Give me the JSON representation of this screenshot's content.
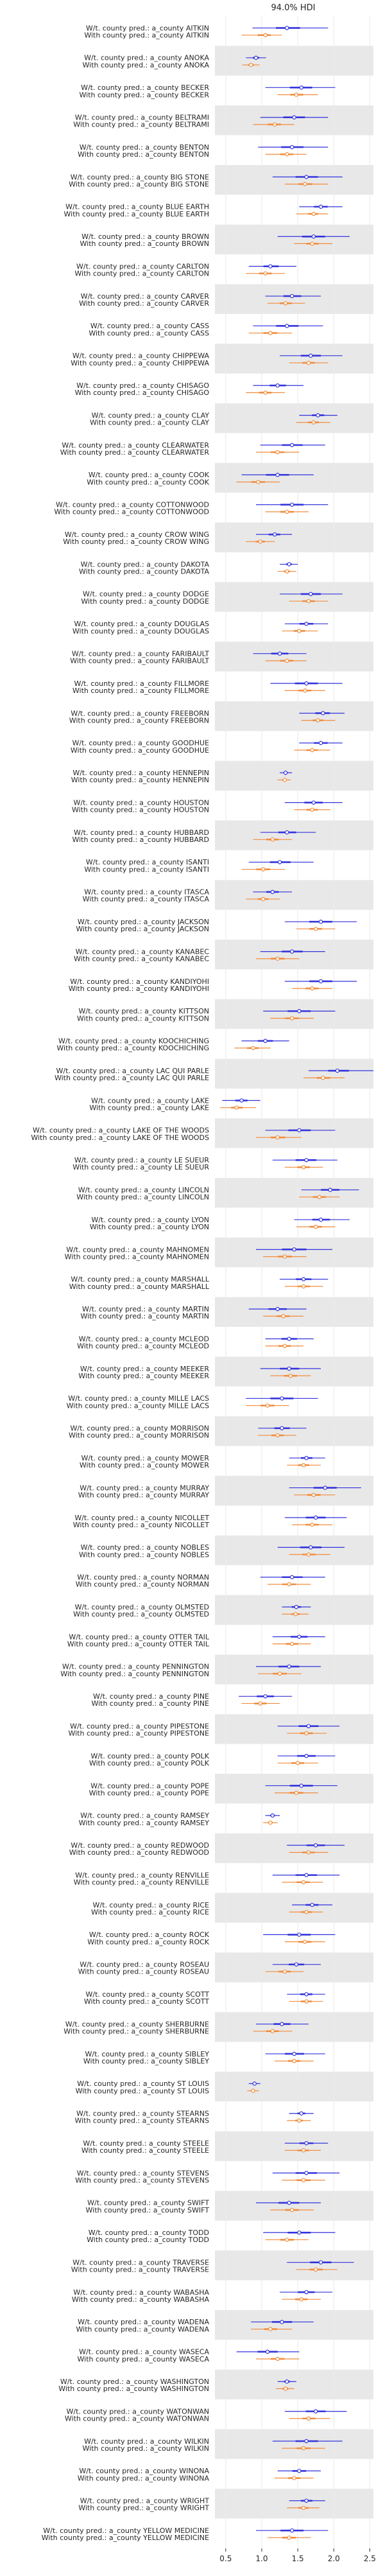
{
  "chart_data": {
    "type": "forest",
    "title": "94.0% HDI",
    "xlim": [
      0.35,
      2.55
    ],
    "xticks": [
      "0.5",
      "1.0",
      "1.5",
      "2.0",
      "2.5"
    ],
    "xtick_values": [
      0.5,
      1.0,
      1.5,
      2.0,
      2.5
    ],
    "grid": true,
    "band_colors": [
      "#ffffff",
      "#e8e8e8"
    ],
    "colors": {
      "without": "#3333dd",
      "with": "#f28c3c"
    },
    "label_templates": {
      "without": "W/t. county pred.: a_county {c}",
      "with": "With county pred.: a_county {c}"
    },
    "counties": [
      {
        "name": "AITKIN",
        "wo": [
          0.87,
          1.35,
          1.92
        ],
        "w": [
          0.72,
          1.05,
          1.28
        ]
      },
      {
        "name": "ANOKA",
        "wo": [
          0.78,
          0.92,
          1.06
        ],
        "w": [
          0.73,
          0.85,
          0.97
        ]
      },
      {
        "name": "BECKER",
        "wo": [
          1.05,
          1.55,
          2.02
        ],
        "w": [
          1.22,
          1.48,
          1.78
        ]
      },
      {
        "name": "BELTRAMI",
        "wo": [
          0.98,
          1.45,
          1.92
        ],
        "w": [
          0.88,
          1.18,
          1.45
        ]
      },
      {
        "name": "BENTON",
        "wo": [
          0.95,
          1.42,
          1.92
        ],
        "w": [
          1.05,
          1.35,
          1.62
        ]
      },
      {
        "name": "BIG STONE",
        "wo": [
          1.15,
          1.62,
          2.12
        ],
        "w": [
          1.32,
          1.6,
          1.92
        ]
      },
      {
        "name": "BLUE EARTH",
        "wo": [
          1.52,
          1.82,
          2.12
        ],
        "w": [
          1.48,
          1.72,
          1.92
        ]
      },
      {
        "name": "BROWN",
        "wo": [
          1.22,
          1.72,
          2.22
        ],
        "w": [
          1.45,
          1.7,
          1.98
        ]
      },
      {
        "name": "CARLTON",
        "wo": [
          0.82,
          1.12,
          1.48
        ],
        "w": [
          0.78,
          1.05,
          1.32
        ]
      },
      {
        "name": "CARVER",
        "wo": [
          1.05,
          1.42,
          1.82
        ],
        "w": [
          1.08,
          1.33,
          1.6
        ]
      },
      {
        "name": "CASS",
        "wo": [
          0.88,
          1.35,
          1.85
        ],
        "w": [
          0.82,
          1.12,
          1.42
        ]
      },
      {
        "name": "CHIPPEWA",
        "wo": [
          1.25,
          1.68,
          2.12
        ],
        "w": [
          1.38,
          1.65,
          1.92
        ]
      },
      {
        "name": "CHISAGO",
        "wo": [
          0.88,
          1.22,
          1.58
        ],
        "w": [
          0.78,
          1.05,
          1.32
        ]
      },
      {
        "name": "CLAY",
        "wo": [
          1.52,
          1.78,
          2.05
        ],
        "w": [
          1.48,
          1.72,
          1.95
        ]
      },
      {
        "name": "CLEARWATER",
        "wo": [
          0.98,
          1.42,
          1.88
        ],
        "w": [
          0.92,
          1.22,
          1.52
        ]
      },
      {
        "name": "COOK",
        "wo": [
          0.72,
          1.22,
          1.72
        ],
        "w": [
          0.65,
          0.95,
          1.25
        ]
      },
      {
        "name": "COTTONWOOD",
        "wo": [
          0.92,
          1.42,
          1.92
        ],
        "w": [
          1.05,
          1.35,
          1.65
        ]
      },
      {
        "name": "CROW WING",
        "wo": [
          0.92,
          1.18,
          1.42
        ],
        "w": [
          0.78,
          0.98,
          1.18
        ]
      },
      {
        "name": "DAKOTA",
        "wo": [
          1.25,
          1.38,
          1.5
        ],
        "w": [
          1.22,
          1.35,
          1.48
        ]
      },
      {
        "name": "DODGE",
        "wo": [
          1.25,
          1.68,
          2.12
        ],
        "w": [
          1.38,
          1.65,
          1.92
        ]
      },
      {
        "name": "DOUGLAS",
        "wo": [
          1.32,
          1.62,
          1.92
        ],
        "w": [
          1.28,
          1.52,
          1.78
        ]
      },
      {
        "name": "FARIBAULT",
        "wo": [
          0.88,
          1.25,
          1.62
        ],
        "w": [
          1.05,
          1.35,
          1.62
        ]
      },
      {
        "name": "FILLMORE",
        "wo": [
          1.12,
          1.62,
          2.12
        ],
        "w": [
          1.32,
          1.6,
          1.88
        ]
      },
      {
        "name": "FREEBORN",
        "wo": [
          1.52,
          1.85,
          2.15
        ],
        "w": [
          1.55,
          1.78,
          2.02
        ]
      },
      {
        "name": "GOODHUE",
        "wo": [
          1.52,
          1.82,
          2.12
        ],
        "w": [
          1.45,
          1.7,
          1.95
        ]
      },
      {
        "name": "HENNEPIN",
        "wo": [
          1.25,
          1.33,
          1.42
        ],
        "w": [
          1.22,
          1.32,
          1.4
        ]
      },
      {
        "name": "HOUSTON",
        "wo": [
          1.32,
          1.72,
          2.12
        ],
        "w": [
          1.45,
          1.7,
          1.95
        ]
      },
      {
        "name": "HUBBARD",
        "wo": [
          0.98,
          1.35,
          1.75
        ],
        "w": [
          0.88,
          1.15,
          1.42
        ]
      },
      {
        "name": "ISANTI",
        "wo": [
          0.82,
          1.25,
          1.72
        ],
        "w": [
          0.72,
          1.02,
          1.32
        ]
      },
      {
        "name": "ITASCA",
        "wo": [
          0.88,
          1.15,
          1.42
        ],
        "w": [
          0.78,
          1.02,
          1.25
        ]
      },
      {
        "name": "JACKSON",
        "wo": [
          1.32,
          1.82,
          2.32
        ],
        "w": [
          1.48,
          1.75,
          2.02
        ]
      },
      {
        "name": "KANABEC",
        "wo": [
          0.98,
          1.42,
          1.88
        ],
        "w": [
          0.92,
          1.22,
          1.52
        ]
      },
      {
        "name": "KANDIYOHI",
        "wo": [
          1.32,
          1.82,
          2.32
        ],
        "w": [
          1.42,
          1.7,
          1.98
        ]
      },
      {
        "name": "KITTSON",
        "wo": [
          1.02,
          1.52,
          2.02
        ],
        "w": [
          1.12,
          1.42,
          1.72
        ]
      },
      {
        "name": "KOOCHICHING",
        "wo": [
          0.72,
          1.05,
          1.38
        ],
        "w": [
          0.62,
          0.88,
          1.12
        ]
      },
      {
        "name": "LAC QUI PARLE",
        "wo": [
          1.65,
          2.05,
          2.55
        ],
        "w": [
          1.58,
          1.85,
          2.15
        ]
      },
      {
        "name": "LAKE",
        "wo": [
          0.45,
          0.72,
          0.98
        ],
        "w": [
          0.42,
          0.65,
          0.92
        ]
      },
      {
        "name": "LAKE OF THE WOODS",
        "wo": [
          1.05,
          1.52,
          2.02
        ],
        "w": [
          0.92,
          1.22,
          1.55
        ]
      },
      {
        "name": "LE SUEUR",
        "wo": [
          1.15,
          1.62,
          2.05
        ],
        "w": [
          1.32,
          1.58,
          1.85
        ]
      },
      {
        "name": "LINCOLN",
        "wo": [
          1.55,
          1.95,
          2.35
        ],
        "w": [
          1.52,
          1.8,
          2.08
        ]
      },
      {
        "name": "LYON",
        "wo": [
          1.45,
          1.82,
          2.22
        ],
        "w": [
          1.48,
          1.75,
          2.02
        ]
      },
      {
        "name": "MAHNOMEN",
        "wo": [
          0.92,
          1.45,
          1.98
        ],
        "w": [
          1.02,
          1.32,
          1.62
        ]
      },
      {
        "name": "MARSHALL",
        "wo": [
          1.25,
          1.58,
          1.92
        ],
        "w": [
          1.32,
          1.58,
          1.85
        ]
      },
      {
        "name": "MARTIN",
        "wo": [
          0.82,
          1.22,
          1.62
        ],
        "w": [
          1.02,
          1.3,
          1.58
        ]
      },
      {
        "name": "MCLEOD",
        "wo": [
          1.05,
          1.38,
          1.72
        ],
        "w": [
          1.05,
          1.32,
          1.58
        ]
      },
      {
        "name": "MEEKER",
        "wo": [
          0.98,
          1.38,
          1.82
        ],
        "w": [
          1.12,
          1.4,
          1.68
        ]
      },
      {
        "name": "MILLE LACS",
        "wo": [
          0.78,
          1.28,
          1.78
        ],
        "w": [
          0.78,
          1.08,
          1.38
        ]
      },
      {
        "name": "MORRISON",
        "wo": [
          0.95,
          1.28,
          1.62
        ],
        "w": [
          0.95,
          1.22,
          1.48
        ]
      },
      {
        "name": "MOWER",
        "wo": [
          1.38,
          1.62,
          1.88
        ],
        "w": [
          1.35,
          1.58,
          1.82
        ]
      },
      {
        "name": "MURRAY",
        "wo": [
          1.38,
          1.88,
          2.38
        ],
        "w": [
          1.45,
          1.72,
          2.02
        ]
      },
      {
        "name": "NICOLLET",
        "wo": [
          1.32,
          1.75,
          2.18
        ],
        "w": [
          1.42,
          1.7,
          1.98
        ]
      },
      {
        "name": "NOBLES",
        "wo": [
          1.22,
          1.68,
          2.15
        ],
        "w": [
          1.38,
          1.65,
          1.95
        ]
      },
      {
        "name": "NORMAN",
        "wo": [
          0.98,
          1.42,
          1.88
        ],
        "w": [
          1.08,
          1.38,
          1.68
        ]
      },
      {
        "name": "OLMSTED",
        "wo": [
          1.28,
          1.48,
          1.68
        ],
        "w": [
          1.28,
          1.47,
          1.65
        ]
      },
      {
        "name": "OTTER TAIL",
        "wo": [
          1.15,
          1.52,
          1.88
        ],
        "w": [
          1.15,
          1.42,
          1.68
        ]
      },
      {
        "name": "PENNINGTON",
        "wo": [
          0.92,
          1.38,
          1.82
        ],
        "w": [
          0.95,
          1.25,
          1.55
        ]
      },
      {
        "name": "PINE",
        "wo": [
          0.68,
          1.05,
          1.42
        ],
        "w": [
          0.72,
          0.98,
          1.25
        ]
      },
      {
        "name": "PIPESTONE",
        "wo": [
          1.22,
          1.65,
          2.08
        ],
        "w": [
          1.35,
          1.62,
          1.9
        ]
      },
      {
        "name": "POLK",
        "wo": [
          1.22,
          1.62,
          2.02
        ],
        "w": [
          1.22,
          1.5,
          1.78
        ]
      },
      {
        "name": "POPE",
        "wo": [
          1.05,
          1.55,
          2.05
        ],
        "w": [
          1.18,
          1.48,
          1.78
        ]
      },
      {
        "name": "RAMSEY",
        "wo": [
          1.05,
          1.15,
          1.25
        ],
        "w": [
          1.02,
          1.12,
          1.22
        ]
      },
      {
        "name": "REDWOOD",
        "wo": [
          1.35,
          1.75,
          2.15
        ],
        "w": [
          1.38,
          1.65,
          1.92
        ]
      },
      {
        "name": "RENVILLE",
        "wo": [
          1.15,
          1.62,
          2.08
        ],
        "w": [
          1.28,
          1.58,
          1.85
        ]
      },
      {
        "name": "RICE",
        "wo": [
          1.42,
          1.7,
          1.98
        ],
        "w": [
          1.38,
          1.62,
          1.85
        ]
      },
      {
        "name": "ROCK",
        "wo": [
          1.02,
          1.52,
          2.02
        ],
        "w": [
          1.32,
          1.6,
          1.88
        ]
      },
      {
        "name": "ROSEAU",
        "wo": [
          1.15,
          1.48,
          1.82
        ],
        "w": [
          1.05,
          1.32,
          1.58
        ]
      },
      {
        "name": "SCOTT",
        "wo": [
          1.35,
          1.62,
          1.88
        ],
        "w": [
          1.38,
          1.62,
          1.85
        ]
      },
      {
        "name": "SHERBURNE",
        "wo": [
          0.92,
          1.28,
          1.65
        ],
        "w": [
          0.88,
          1.15,
          1.42
        ]
      },
      {
        "name": "SIBLEY",
        "wo": [
          1.05,
          1.45,
          1.88
        ],
        "w": [
          1.18,
          1.45,
          1.72
        ]
      },
      {
        "name": "ST LOUIS",
        "wo": [
          0.82,
          0.9,
          0.98
        ],
        "w": [
          0.8,
          0.88,
          0.96
        ]
      },
      {
        "name": "STEARNS",
        "wo": [
          1.38,
          1.55,
          1.72
        ],
        "w": [
          1.35,
          1.52,
          1.68
        ]
      },
      {
        "name": "STEELE",
        "wo": [
          1.32,
          1.62,
          1.92
        ],
        "w": [
          1.32,
          1.58,
          1.82
        ]
      },
      {
        "name": "STEVENS",
        "wo": [
          1.15,
          1.62,
          2.08
        ],
        "w": [
          1.28,
          1.58,
          1.88
        ]
      },
      {
        "name": "SWIFT",
        "wo": [
          0.92,
          1.38,
          1.82
        ],
        "w": [
          1.12,
          1.42,
          1.72
        ]
      },
      {
        "name": "TODD",
        "wo": [
          1.02,
          1.52,
          2.02
        ],
        "w": [
          1.05,
          1.35,
          1.65
        ]
      },
      {
        "name": "TRAVERSE",
        "wo": [
          1.35,
          1.82,
          2.28
        ],
        "w": [
          1.48,
          1.75,
          2.05
        ]
      },
      {
        "name": "WABASHA",
        "wo": [
          1.25,
          1.62,
          1.98
        ],
        "w": [
          1.28,
          1.55,
          1.82
        ]
      },
      {
        "name": "WADENA",
        "wo": [
          0.85,
          1.28,
          1.72
        ],
        "w": [
          0.85,
          1.12,
          1.42
        ]
      },
      {
        "name": "WASECA",
        "wo": [
          0.65,
          1.08,
          1.52
        ],
        "w": [
          0.92,
          1.22,
          1.52
        ]
      },
      {
        "name": "WASHINGTON",
        "wo": [
          1.22,
          1.35,
          1.48
        ],
        "w": [
          1.2,
          1.33,
          1.45
        ]
      },
      {
        "name": "WATONWAN",
        "wo": [
          1.32,
          1.75,
          2.18
        ],
        "w": [
          1.38,
          1.65,
          1.95
        ]
      },
      {
        "name": "WILKIN",
        "wo": [
          1.15,
          1.62,
          2.12
        ],
        "w": [
          1.28,
          1.58,
          1.88
        ]
      },
      {
        "name": "WINONA",
        "wo": [
          1.22,
          1.52,
          1.82
        ],
        "w": [
          1.18,
          1.45,
          1.72
        ]
      },
      {
        "name": "WRIGHT",
        "wo": [
          1.38,
          1.62,
          1.88
        ],
        "w": [
          1.35,
          1.58,
          1.8
        ]
      },
      {
        "name": "YELLOW MEDICINE",
        "wo": [
          0.92,
          1.42,
          1.92
        ],
        "w": [
          1.08,
          1.38,
          1.68
        ]
      }
    ]
  }
}
